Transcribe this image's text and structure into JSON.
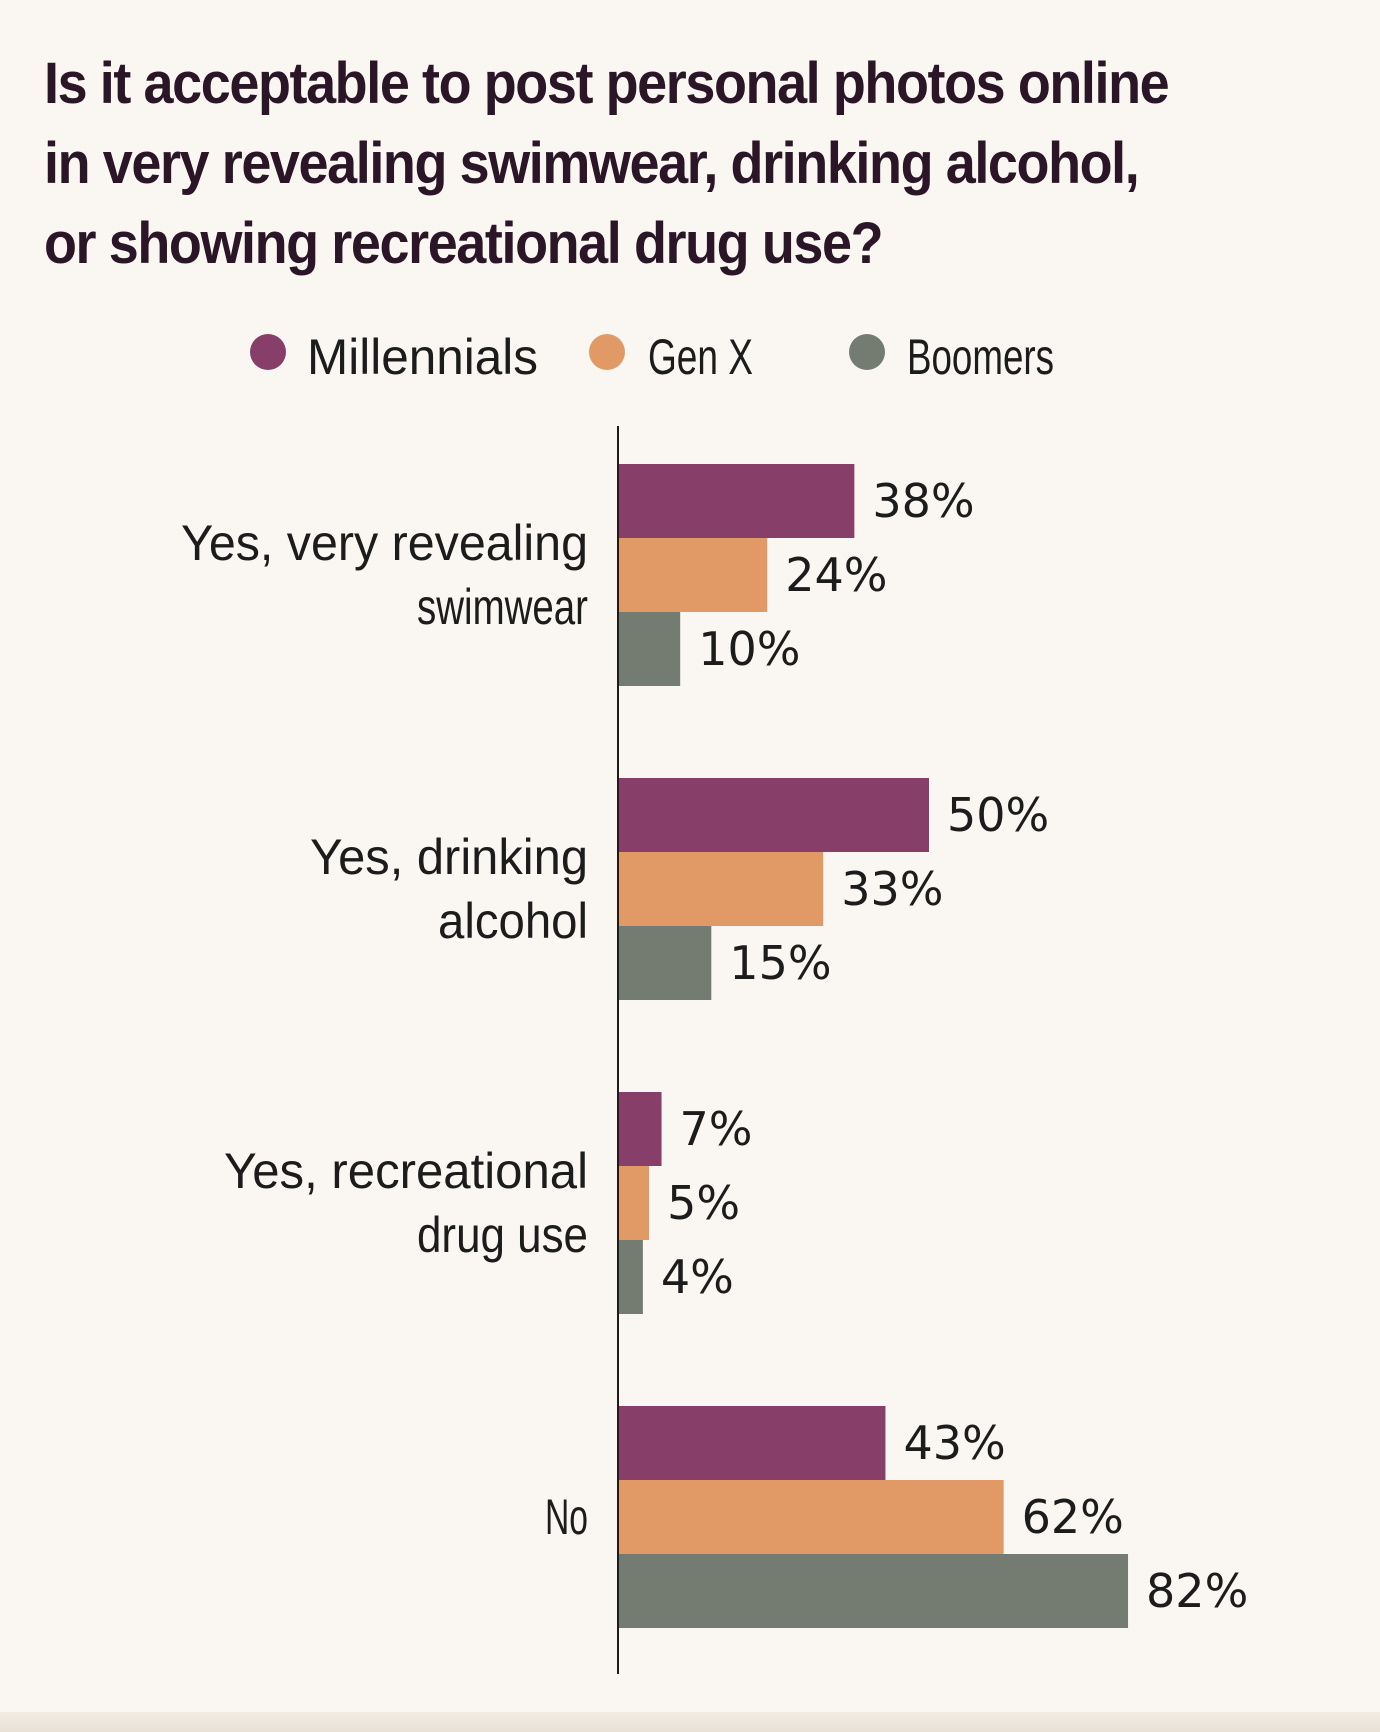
{
  "chart_data": {
    "type": "bar",
    "orientation": "horizontal",
    "title_lines": [
      "Is it acceptable to post personal photos online",
      "in very revealing swimwear, drinking alcohol,",
      "or showing recreational drug use?"
    ],
    "categories": [
      [
        "Yes, very revealing",
        "swimwear"
      ],
      [
        "Yes, drinking",
        "alcohol"
      ],
      [
        "Yes, recreational",
        "drug use"
      ],
      [
        "No"
      ]
    ],
    "series": [
      {
        "name": "Millennials",
        "color": "#873f69",
        "values": [
          38,
          50,
          7,
          43
        ]
      },
      {
        "name": "Gen X",
        "color": "#e19a66",
        "values": [
          24,
          33,
          5,
          62
        ]
      },
      {
        "name": "Boomers",
        "color": "#747b70",
        "values": [
          10,
          15,
          4,
          82
        ]
      }
    ],
    "value_suffix": "%",
    "xlim": [
      0,
      100
    ],
    "legend_position": "top-center",
    "xlabel": "",
    "ylabel": "",
    "grid": false
  }
}
